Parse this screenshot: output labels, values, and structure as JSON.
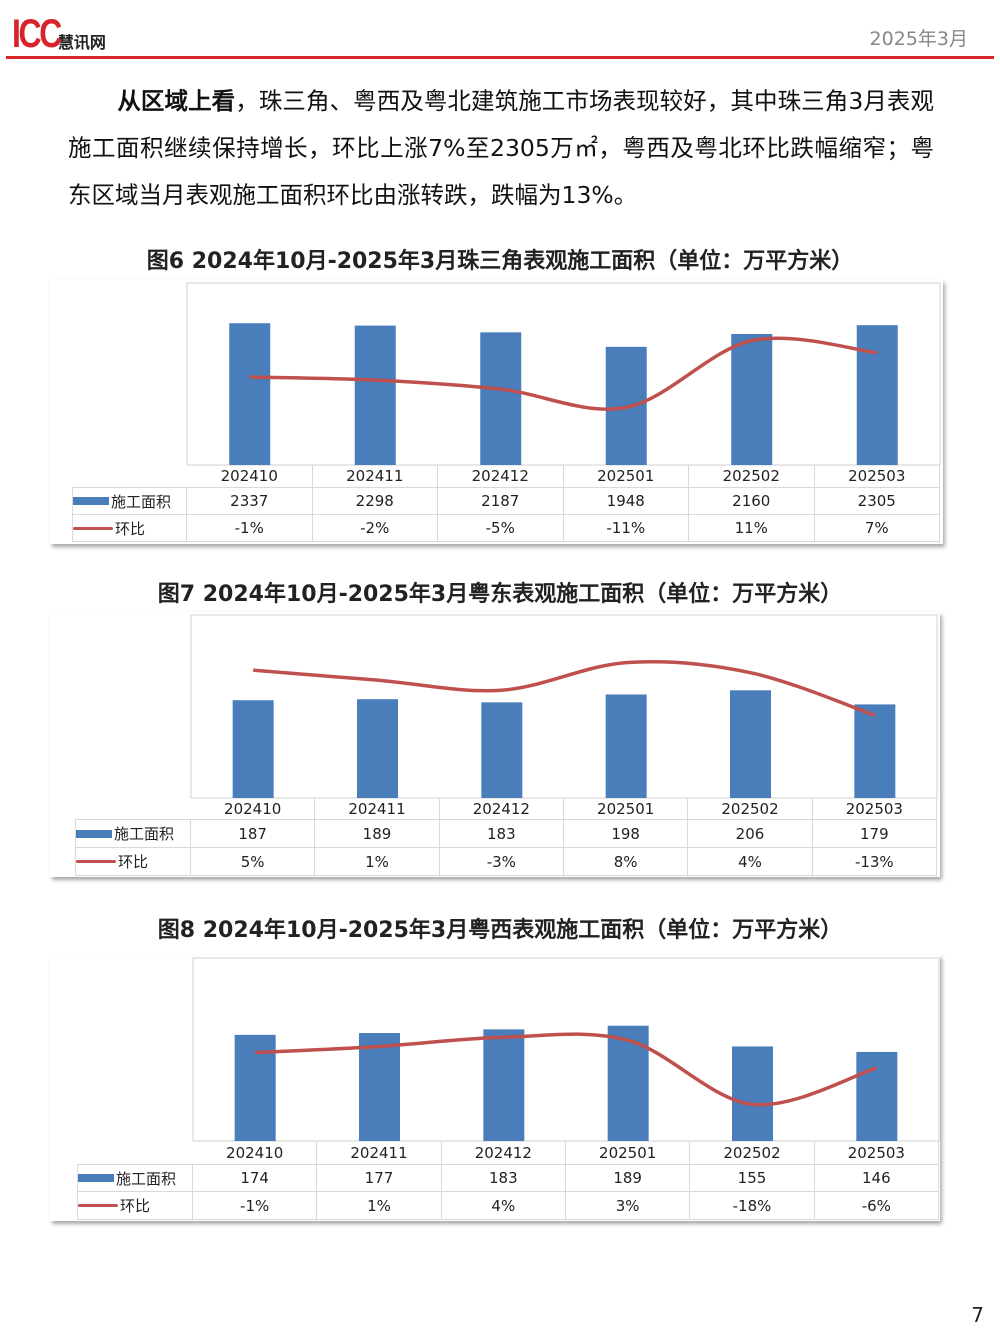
{
  "header": {
    "logo_text": "ICC慧讯网",
    "logo_latin": "ICC",
    "logo_cn": "慧讯网",
    "date": "2025年3月"
  },
  "paragraph": {
    "lead": "从区域上看",
    "body": "，珠三角、粤西及粤北建筑施工市场表现较好，其中珠三角3月表观施工面积继续保持增长，环比上涨7%至2305万㎡，粤西及粤北环比跌幅缩窄；粤东区域当月表观施工面积环比由涨转跌，跌幅为13%。"
  },
  "colors": {
    "bar": "#4a7ebb",
    "line": "#c0504d",
    "accent": "#d9232a"
  },
  "chart_data": [
    {
      "type": "bar+line",
      "title": "图6  2024年10月-2025年3月珠三角表观施工面积（单位：万平方米）",
      "categories": [
        "202410",
        "202411",
        "202412",
        "202501",
        "202502",
        "202503"
      ],
      "series": [
        {
          "name": "施工面积",
          "type": "bar",
          "values": [
            2337,
            2298,
            2187,
            1948,
            2160,
            2305
          ],
          "labels": [
            "2337",
            "2298",
            "2187",
            "1948",
            "2160",
            "2305"
          ]
        },
        {
          "name": "环比",
          "type": "line",
          "values": [
            -1,
            -2,
            -5,
            -11,
            11,
            7
          ],
          "labels": [
            "-1%",
            "-2%",
            "-5%",
            "-11%",
            "11%",
            "7%"
          ]
        }
      ],
      "ylim": [
        0,
        3000
      ],
      "y2lim": [
        -30,
        30
      ],
      "grid": false,
      "legend": "data-table"
    },
    {
      "type": "bar+line",
      "title": "图7  2024年10月-2025年3月粤东表观施工面积（单位：万平方米）",
      "categories": [
        "202410",
        "202411",
        "202412",
        "202501",
        "202502",
        "202503"
      ],
      "series": [
        {
          "name": "施工面积",
          "type": "bar",
          "values": [
            187,
            189,
            183,
            198,
            206,
            179
          ],
          "labels": [
            "187",
            "189",
            "183",
            "198",
            "206",
            "179"
          ]
        },
        {
          "name": "环比",
          "type": "line",
          "values": [
            5,
            1,
            -3,
            8,
            4,
            -13
          ],
          "labels": [
            "5%",
            "1%",
            "-3%",
            "8%",
            "4%",
            "-13%"
          ]
        }
      ],
      "ylim": [
        0,
        350
      ],
      "y2lim": [
        -46,
        27
      ],
      "grid": false,
      "legend": "data-table"
    },
    {
      "type": "bar+line",
      "title": "图8  2024年10月-2025年3月粤西表观施工面积（单位：万平方米）",
      "categories": [
        "202410",
        "202411",
        "202412",
        "202501",
        "202502",
        "202503"
      ],
      "series": [
        {
          "name": "施工面积",
          "type": "bar",
          "values": [
            174,
            177,
            183,
            189,
            155,
            146
          ],
          "labels": [
            "174",
            "177",
            "183",
            "189",
            "155",
            "146"
          ]
        },
        {
          "name": "环比",
          "type": "line",
          "values": [
            -1,
            1,
            4,
            3,
            -18,
            -6
          ],
          "labels": [
            "-1%",
            "1%",
            "4%",
            "3%",
            "-18%",
            "-6%"
          ]
        }
      ],
      "ylim": [
        0,
        300
      ],
      "y2lim": [
        -30,
        30
      ],
      "grid": false,
      "legend": "data-table"
    }
  ],
  "footer": {
    "page_number": "7"
  }
}
